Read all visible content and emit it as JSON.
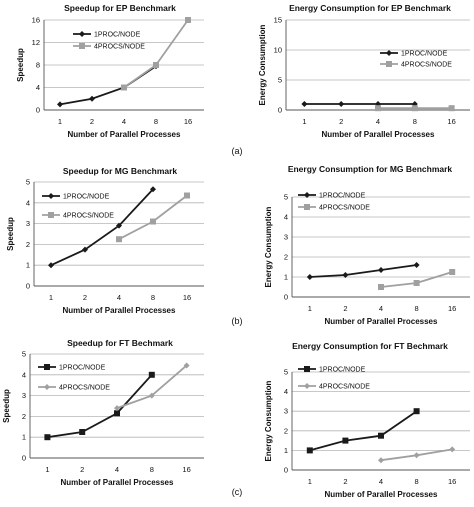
{
  "captions": [
    "(a)",
    "(b)",
    "(c)"
  ],
  "chart_data": [
    {
      "id": "ep-speedup",
      "type": "line",
      "title": "Speedup for EP Benchmark",
      "xlabel": "Number of Parallel Processes",
      "ylabel": "Speedup",
      "categories": [
        "1",
        "2",
        "4",
        "8",
        "16"
      ],
      "ylim": [
        0,
        16
      ],
      "yticks": [
        0,
        4,
        8,
        12,
        16
      ],
      "grid": true,
      "legend_position": "top-left",
      "series": [
        {
          "name": "1PROC/NODE",
          "color": "#1a1a1a",
          "marker": "diamond",
          "values": [
            1,
            2,
            4,
            7.8,
            null
          ]
        },
        {
          "name": "4PROCS/NODE",
          "color": "#a0a0a0",
          "marker": "square",
          "values": [
            null,
            null,
            4,
            8,
            16
          ]
        }
      ]
    },
    {
      "id": "ep-energy",
      "type": "line",
      "title": "Energy Consumption for EP Benchmark",
      "xlabel": "Number of Parallel Processes",
      "ylabel": "Energy Consumption",
      "categories": [
        "1",
        "2",
        "4",
        "8",
        "16"
      ],
      "ylim": [
        0,
        15
      ],
      "yticks": [
        0,
        5,
        10,
        15
      ],
      "grid": true,
      "legend_position": "right",
      "series": [
        {
          "name": "1PROC/NODE",
          "color": "#1a1a1a",
          "marker": "diamond",
          "values": [
            1,
            1,
            1,
            1,
            null
          ]
        },
        {
          "name": "4PROCS/NODE",
          "color": "#a0a0a0",
          "marker": "square",
          "values": [
            null,
            null,
            0.3,
            0.3,
            0.3
          ]
        }
      ]
    },
    {
      "id": "mg-speedup",
      "type": "line",
      "title": "Speedup for MG Benchmark",
      "xlabel": "Number of Parallel Processes",
      "ylabel": "Speedup",
      "categories": [
        "1",
        "2",
        "4",
        "8",
        "16"
      ],
      "ylim": [
        0,
        5
      ],
      "yticks": [
        0,
        1,
        2,
        3,
        4,
        5
      ],
      "grid": true,
      "legend_position": "top-left",
      "series": [
        {
          "name": "1PROC/NODE",
          "color": "#1a1a1a",
          "marker": "diamond",
          "values": [
            1,
            1.75,
            2.9,
            4.65,
            null
          ]
        },
        {
          "name": "4PROCS/NODE",
          "color": "#a0a0a0",
          "marker": "square",
          "values": [
            null,
            null,
            2.25,
            3.1,
            4.35
          ]
        }
      ]
    },
    {
      "id": "mg-energy",
      "type": "line",
      "title": "Energy Consumption for MG Benchmark",
      "xlabel": "Number of Parallel Processes",
      "ylabel": "Energy Consumption",
      "categories": [
        "1",
        "2",
        "4",
        "8",
        "16"
      ],
      "ylim": [
        0,
        5
      ],
      "yticks": [
        0,
        1,
        2,
        3,
        4,
        5
      ],
      "grid": true,
      "legend_position": "top-left",
      "series": [
        {
          "name": "1PROC/NODE",
          "color": "#1a1a1a",
          "marker": "diamond",
          "values": [
            1,
            1.1,
            1.35,
            1.6,
            null
          ]
        },
        {
          "name": "4PROCS/NODE",
          "color": "#a0a0a0",
          "marker": "square",
          "values": [
            null,
            null,
            0.5,
            0.7,
            1.25
          ]
        }
      ]
    },
    {
      "id": "ft-speedup",
      "type": "line",
      "title": "Speedup for FT Bechmark",
      "xlabel": "Number of Parallel Processes",
      "ylabel": "Speedup",
      "categories": [
        "1",
        "2",
        "4",
        "8",
        "16"
      ],
      "ylim": [
        0,
        5
      ],
      "yticks": [
        0,
        1,
        2,
        3,
        4,
        5
      ],
      "grid": true,
      "legend_position": "top-left",
      "series": [
        {
          "name": "1PROC/NODE",
          "color": "#1a1a1a",
          "marker": "square",
          "values": [
            1,
            1.25,
            2.15,
            4,
            null
          ]
        },
        {
          "name": "4PROCS/NODE",
          "color": "#a0a0a0",
          "marker": "diamond",
          "values": [
            null,
            null,
            2.4,
            3,
            4.45
          ]
        }
      ]
    },
    {
      "id": "ft-energy",
      "type": "line",
      "title": "Energy Consumption for FT Bechmark",
      "xlabel": "Number of Parallel Processes",
      "ylabel": "Energy Consumption",
      "categories": [
        "1",
        "2",
        "4",
        "8",
        "16"
      ],
      "ylim": [
        0,
        5
      ],
      "yticks": [
        0,
        1,
        2,
        3,
        4,
        5
      ],
      "grid": true,
      "legend_position": "top-left",
      "series": [
        {
          "name": "1PROC/NODE",
          "color": "#1a1a1a",
          "marker": "square",
          "values": [
            1,
            1.5,
            1.75,
            3,
            null
          ]
        },
        {
          "name": "4PROCS/NODE",
          "color": "#a0a0a0",
          "marker": "diamond",
          "values": [
            null,
            null,
            0.5,
            0.75,
            1.05
          ]
        }
      ]
    }
  ]
}
